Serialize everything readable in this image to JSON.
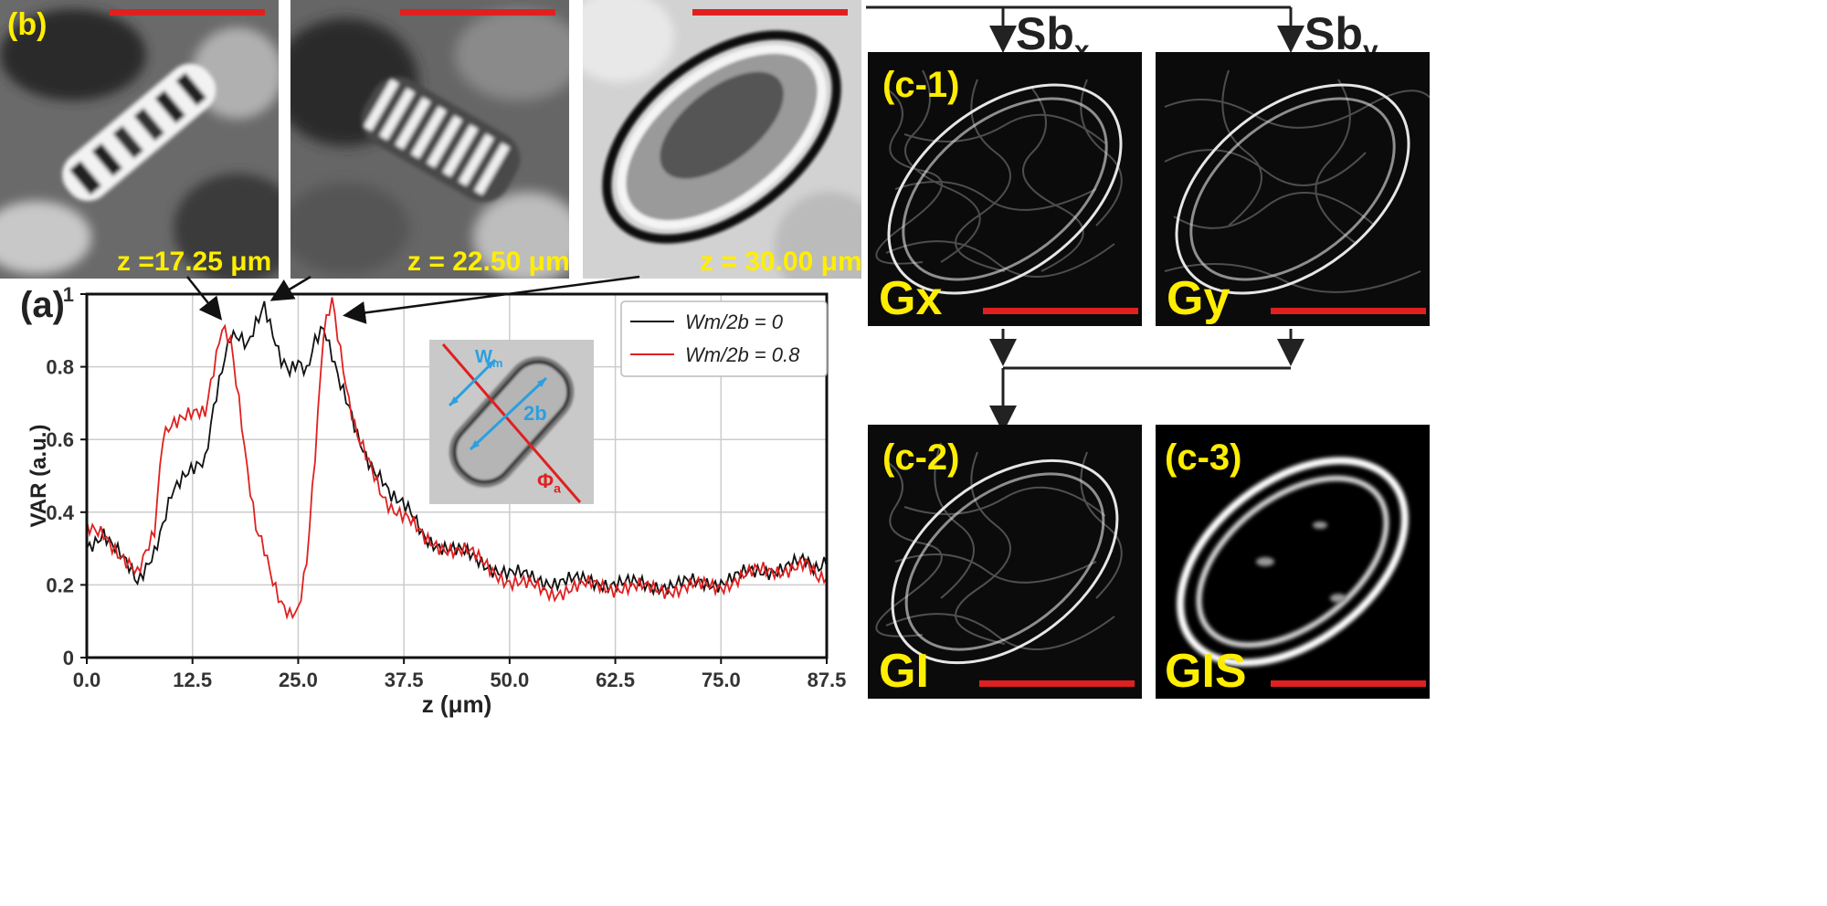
{
  "panel_b": {
    "label": "(b)",
    "images": [
      {
        "z_label": "z =17.25 μm"
      },
      {
        "z_label": "z = 22.50 μm"
      },
      {
        "z_label": "z = 30.00 μm"
      }
    ]
  },
  "panel_a": {
    "label": "(a)",
    "inset": {
      "wm": "W",
      "wm_sub": "m",
      "twob": "2b",
      "phi": "Φ",
      "phi_sub": "a"
    }
  },
  "panel_c": {
    "sbx_main": "Sb",
    "sbx_sub": "x",
    "sby_main": "Sb",
    "sby_sub": "y",
    "c1": {
      "label": "(c-1)",
      "name": "Gx"
    },
    "cy": {
      "name": "Gy"
    },
    "c2": {
      "label": "(c-2)",
      "name": "GI"
    },
    "c3": {
      "label": "(c-3)",
      "name": "GIS"
    }
  },
  "colors": {
    "scale_bar": "#e02020",
    "label_yellow": "#ffee00",
    "series_black": "#111111",
    "series_red": "#e02020",
    "inset_blue": "#2aa0e0"
  },
  "chart_data": {
    "type": "line",
    "xlabel": "z (μm)",
    "ylabel": "VAR (a.u.)",
    "xlim": [
      0,
      87.5
    ],
    "ylim": [
      0,
      1
    ],
    "xticks": [
      "0.0",
      "12.5",
      "25.0",
      "37.5",
      "50.0",
      "62.5",
      "75.0",
      "87.5"
    ],
    "yticks": [
      "0",
      "0.2",
      "0.4",
      "0.6",
      "0.8",
      "1"
    ],
    "grid": true,
    "legend_position": "top-right",
    "series": [
      {
        "name": "Wm/2b = 0",
        "color": "#111111",
        "x": [
          0,
          2,
          4,
          6,
          8,
          10,
          12,
          14,
          15,
          16,
          17,
          18,
          19,
          20,
          21,
          22,
          23,
          24,
          25,
          26,
          27,
          28,
          29,
          30,
          31,
          32,
          33,
          34,
          35,
          36,
          38,
          40,
          45,
          50,
          55,
          60,
          65,
          70,
          75,
          80,
          85,
          87.5
        ],
        "y": [
          0.3,
          0.35,
          0.28,
          0.2,
          0.3,
          0.45,
          0.5,
          0.55,
          0.7,
          0.8,
          0.88,
          0.87,
          0.85,
          0.92,
          0.98,
          0.9,
          0.82,
          0.78,
          0.8,
          0.78,
          0.88,
          0.92,
          0.84,
          0.75,
          0.68,
          0.6,
          0.55,
          0.52,
          0.5,
          0.45,
          0.4,
          0.33,
          0.28,
          0.23,
          0.21,
          0.21,
          0.2,
          0.2,
          0.21,
          0.24,
          0.26,
          0.25
        ]
      },
      {
        "name": "Wm/2b = 0.8",
        "color": "#e02020",
        "x": [
          0,
          2,
          4,
          6,
          8,
          9,
          10,
          12,
          14,
          15,
          16,
          17,
          18,
          19,
          20,
          21,
          22,
          23,
          24,
          25,
          26,
          27,
          28,
          29,
          30,
          31,
          32,
          33,
          34,
          35,
          36,
          38,
          40,
          45,
          50,
          55,
          60,
          65,
          70,
          75,
          80,
          85,
          87.5
        ],
        "y": [
          0.35,
          0.35,
          0.28,
          0.22,
          0.35,
          0.62,
          0.65,
          0.66,
          0.67,
          0.8,
          0.92,
          0.88,
          0.7,
          0.5,
          0.35,
          0.3,
          0.22,
          0.16,
          0.12,
          0.12,
          0.25,
          0.55,
          0.9,
          1.0,
          0.85,
          0.7,
          0.6,
          0.55,
          0.5,
          0.45,
          0.42,
          0.38,
          0.32,
          0.29,
          0.21,
          0.18,
          0.2,
          0.19,
          0.19,
          0.2,
          0.24,
          0.25,
          0.22
        ]
      }
    ]
  }
}
